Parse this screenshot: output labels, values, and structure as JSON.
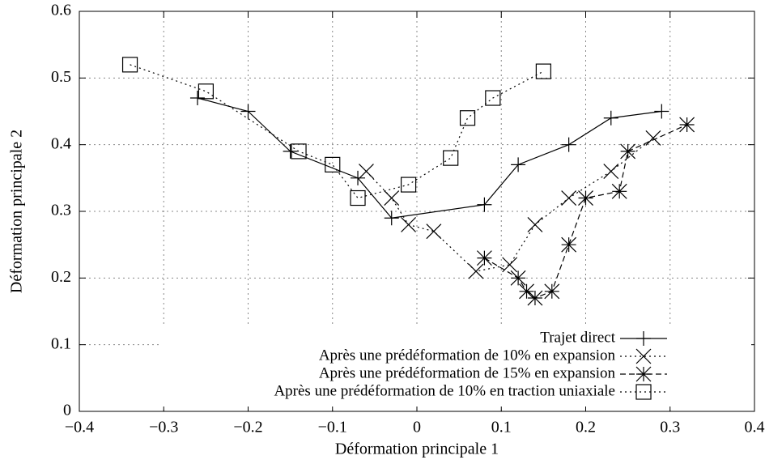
{
  "chart_data": {
    "type": "line",
    "xlabel": "Déformation principale 1",
    "ylabel": "Déformation principale 2",
    "xlim": [
      -0.4,
      0.4
    ],
    "ylim": [
      0,
      0.6
    ],
    "xticks": [
      {
        "value": -0.4,
        "label": "−0.4"
      },
      {
        "value": -0.3,
        "label": "−0.3"
      },
      {
        "value": -0.2,
        "label": "−0.2"
      },
      {
        "value": -0.1,
        "label": "−0.1"
      },
      0,
      0.1,
      0.2,
      0.3,
      0.4
    ],
    "yticks": [
      0,
      0.1,
      0.2,
      0.3,
      0.4,
      0.5,
      0.6
    ],
    "grid": true,
    "legend": "bottom-right",
    "series": [
      {
        "name": "Trajet direct",
        "color": "#000000",
        "line": "solid",
        "marker": "plus",
        "x": [
          -0.26,
          -0.2,
          -0.15,
          -0.07,
          -0.03,
          0.08,
          0.12,
          0.18,
          0.23,
          0.29
        ],
        "values": [
          0.47,
          0.45,
          0.39,
          0.35,
          0.29,
          0.31,
          0.37,
          0.4,
          0.44,
          0.45
        ]
      },
      {
        "name": "Après une prédéformation de 10% en expansion",
        "color": "#000000",
        "line": "dotted",
        "marker": "cross",
        "x": [
          -0.06,
          -0.03,
          -0.01,
          0.02,
          0.07,
          0.11,
          0.14,
          0.18,
          0.23,
          0.28
        ],
        "values": [
          0.36,
          0.32,
          0.28,
          0.27,
          0.21,
          0.22,
          0.28,
          0.32,
          0.36,
          0.41
        ]
      },
      {
        "name": "Après une prédéformation de 15% en expansion",
        "color": "#000000",
        "line": "dashed",
        "marker": "star",
        "x": [
          0.08,
          0.12,
          0.13,
          0.14,
          0.16,
          0.18,
          0.2,
          0.24,
          0.25,
          0.32
        ],
        "values": [
          0.23,
          0.2,
          0.18,
          0.17,
          0.18,
          0.25,
          0.32,
          0.33,
          0.39,
          0.43
        ]
      },
      {
        "name": "Après une prédéformation de 10% en traction uniaxiale",
        "color": "#000000",
        "line": "dotted",
        "marker": "square",
        "x": [
          -0.34,
          -0.25,
          -0.14,
          -0.1,
          -0.07,
          -0.01,
          0.04,
          0.06,
          0.09,
          0.15
        ],
        "values": [
          0.52,
          0.48,
          0.39,
          0.37,
          0.32,
          0.34,
          0.38,
          0.44,
          0.47,
          0.51
        ]
      }
    ]
  }
}
